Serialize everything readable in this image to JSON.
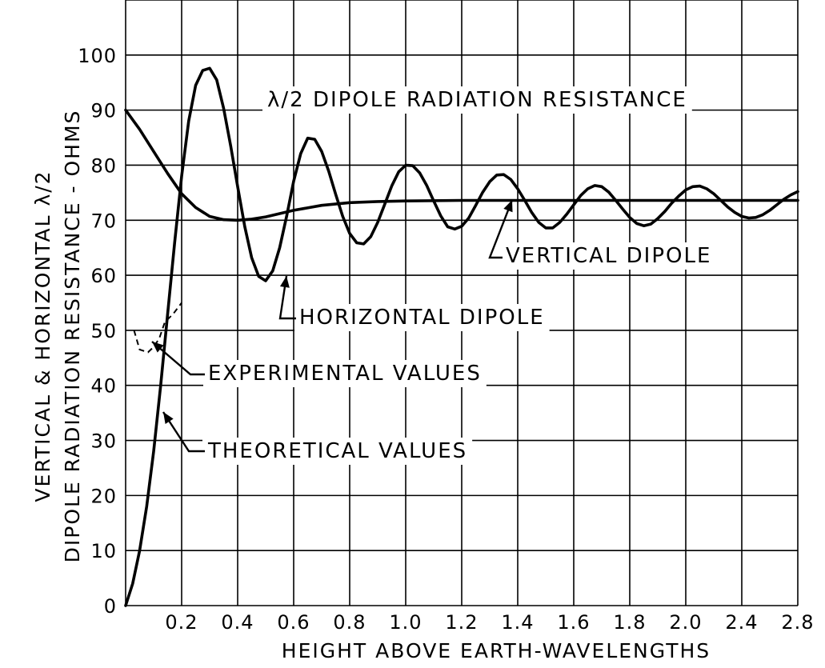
{
  "chart_data": {
    "type": "line",
    "title": "",
    "xlabel": "HEIGHT ABOVE EARTH-WAVELENGTHS",
    "ylabel_lines": [
      "VERTICAL & HORIZONTAL λ/2",
      "DIPOLE RADIATION RESISTANCE - OHMS"
    ],
    "x_tick_labels": [
      "0.2",
      "0.4",
      "0.6",
      "0.8",
      "1.0",
      "1.2",
      "1.4",
      "1.6",
      "1.8",
      "2.0",
      "2.4",
      "2.8"
    ],
    "y_tick_labels": [
      "0",
      "10",
      "20",
      "30",
      "40",
      "50",
      "60",
      "70",
      "80",
      "90",
      "100"
    ],
    "xlim": [
      0,
      2.4
    ],
    "ylim": [
      0,
      110
    ],
    "grid": true,
    "series": [
      {
        "key": "vertical",
        "x": [
          0,
          0.05,
          0.1,
          0.15,
          0.2,
          0.25,
          0.3,
          0.35,
          0.4,
          0.45,
          0.5,
          0.55,
          0.6,
          0.7,
          0.8,
          0.9,
          1.0,
          1.2,
          1.4,
          1.6,
          1.8,
          2.0,
          2.2,
          2.4
        ],
        "y": [
          90,
          86.5,
          82.5,
          78.5,
          74.8,
          72.3,
          70.7,
          70.1,
          70.0,
          70.2,
          70.6,
          71.2,
          71.8,
          72.7,
          73.2,
          73.4,
          73.5,
          73.6,
          73.6,
          73.6,
          73.6,
          73.6,
          73.6,
          73.6
        ]
      },
      {
        "key": "horizontal",
        "x": [
          0,
          0.025,
          0.05,
          0.075,
          0.1,
          0.125,
          0.15,
          0.175,
          0.2,
          0.225,
          0.25,
          0.275,
          0.3,
          0.325,
          0.35,
          0.375,
          0.4,
          0.425,
          0.45,
          0.475,
          0.5,
          0.525,
          0.55,
          0.575,
          0.6,
          0.625,
          0.65,
          0.675,
          0.7,
          0.725,
          0.75,
          0.775,
          0.8,
          0.825,
          0.85,
          0.875,
          0.9,
          0.925,
          0.95,
          0.975,
          1.0,
          1.025,
          1.05,
          1.075,
          1.1,
          1.125,
          1.15,
          1.175,
          1.2,
          1.225,
          1.25,
          1.275,
          1.3,
          1.325,
          1.35,
          1.375,
          1.4,
          1.425,
          1.45,
          1.475,
          1.5,
          1.525,
          1.55,
          1.575,
          1.6,
          1.625,
          1.65,
          1.675,
          1.7,
          1.725,
          1.75,
          1.775,
          1.8,
          1.825,
          1.85,
          1.875,
          1.9,
          1.925,
          1.95,
          1.975,
          2.0,
          2.025,
          2.05,
          2.075,
          2.1,
          2.125,
          2.15,
          2.175,
          2.2,
          2.225,
          2.25,
          2.275,
          2.3,
          2.325,
          2.35,
          2.375,
          2.4
        ],
        "y": [
          0,
          4,
          10,
          18,
          28,
          40,
          53,
          66,
          78,
          88,
          94.5,
          97.2,
          97.6,
          95.5,
          90.3,
          83.5,
          76.1,
          68.9,
          63.2,
          59.8,
          59.0,
          60.8,
          65.0,
          70.8,
          77.1,
          82.1,
          84.9,
          84.7,
          82.5,
          78.9,
          74.7,
          70.7,
          67.6,
          65.9,
          65.7,
          67.0,
          69.6,
          72.9,
          76.2,
          78.8,
          80.0,
          79.9,
          78.6,
          76.3,
          73.5,
          70.8,
          68.8,
          68.4,
          68.9,
          70.4,
          72.7,
          75.1,
          77.0,
          78.2,
          78.3,
          77.4,
          75.7,
          73.6,
          71.4,
          69.6,
          68.6,
          68.6,
          69.6,
          71.1,
          72.8,
          74.5,
          75.7,
          76.3,
          76.1,
          75.1,
          73.6,
          72.0,
          70.5,
          69.4,
          69.0,
          69.3,
          70.3,
          71.6,
          73.1,
          74.4,
          75.5,
          76.1,
          76.2,
          75.7,
          74.8,
          73.6,
          72.4,
          71.4,
          70.7,
          70.4,
          70.5,
          71.0,
          71.8,
          72.8,
          73.8,
          74.6,
          75.2
        ]
      },
      {
        "key": "experimental",
        "style": "dashed",
        "x": [
          0.03,
          0.05,
          0.08,
          0.1,
          0.12,
          0.14,
          0.17,
          0.2
        ],
        "y": [
          50,
          46.5,
          46,
          47,
          48.5,
          51.5,
          53,
          55
        ]
      }
    ],
    "annotations": [
      "λ/2 DIPOLE RADIATION RESISTANCE",
      "VERTICAL DIPOLE",
      "HORIZONTAL DIPOLE",
      "EXPERIMENTAL VALUES",
      "THEORETICAL VALUES"
    ]
  }
}
